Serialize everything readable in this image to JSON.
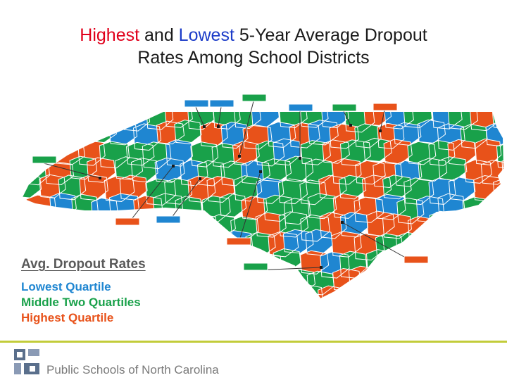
{
  "title": {
    "part_highest": "Highest",
    "part_and": " and ",
    "part_lowest": "Lowest",
    "part_rest_line1": " 5-Year Average Dropout",
    "line2": "Rates Among School Districts"
  },
  "legend": {
    "title": "Avg. Dropout Rates",
    "items": [
      {
        "label": "Lowest Quartile",
        "color": "#1f86d1"
      },
      {
        "label": "Middle Two Quartiles",
        "color": "#19a14a"
      },
      {
        "label": "Highest Quartile",
        "color": "#e8521a"
      }
    ]
  },
  "footer": {
    "organization": "Public Schools of North Carolina",
    "accent_color": "#c2cc3a"
  },
  "map": {
    "state": "North Carolina",
    "quartile_colors": {
      "lowest": "#1f86d1",
      "middle": "#19a14a",
      "highest": "#e8521a"
    },
    "callout_labels": [
      {
        "quartile": "lowest"
      },
      {
        "quartile": "lowest"
      },
      {
        "quartile": "middle"
      },
      {
        "quartile": "lowest"
      },
      {
        "quartile": "middle"
      },
      {
        "quartile": "highest"
      },
      {
        "quartile": "middle"
      },
      {
        "quartile": "highest"
      },
      {
        "quartile": "lowest"
      },
      {
        "quartile": "highest"
      },
      {
        "quartile": "middle"
      },
      {
        "quartile": "highest"
      }
    ]
  }
}
